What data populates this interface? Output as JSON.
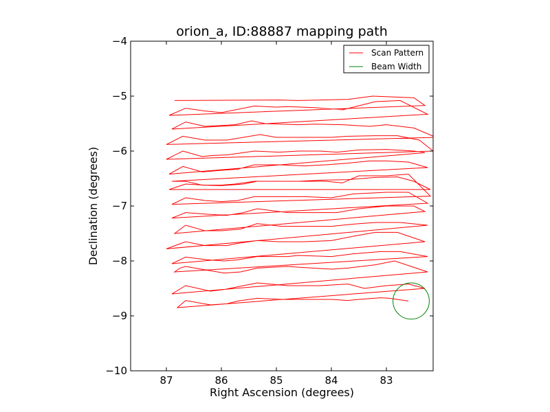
{
  "chart_data": {
    "type": "line",
    "title": "orion_a, ID:88887 mapping path",
    "xlabel": "Right Ascension (degrees)",
    "ylabel": "Declination (degrees)",
    "xlim": [
      87.65,
      82.15
    ],
    "ylim": [
      -10,
      -4
    ],
    "x_ticks": [
      87,
      86,
      85,
      84,
      83
    ],
    "x_tick_labels": [
      "87",
      "86",
      "85",
      "84",
      "83"
    ],
    "y_ticks": [
      -4,
      -5,
      -6,
      -7,
      -8,
      -9,
      -10
    ],
    "y_tick_labels": [
      "−4",
      "−5",
      "−6",
      "−7",
      "−8",
      "−9",
      "−10"
    ],
    "grid": false,
    "legend": {
      "location": "top-right",
      "entries": [
        {
          "label": "Scan Pattern",
          "color": "#ff0000"
        },
        {
          "label": "Beam Width",
          "color": "#008000"
        }
      ]
    },
    "series": [
      {
        "name": "Scan Pattern",
        "color": "#ff0000",
        "x": [
          86.85,
          84.95,
          84.6,
          83.7,
          83.25,
          82.5,
          82.3,
          86.95,
          86.65,
          86.3,
          86.0,
          85.75,
          85.4,
          85.0,
          84.8,
          84.3,
          83.8,
          83.6,
          83.2,
          82.75,
          82.25,
          86.9,
          86.65,
          86.3,
          85.75,
          85.45,
          85.2,
          84.6,
          84.3,
          83.8,
          83.3,
          83.0,
          82.5,
          82.1,
          87.0,
          86.7,
          86.3,
          85.9,
          85.6,
          85.3,
          85.0,
          84.5,
          84.0,
          83.7,
          83.2,
          82.8,
          82.4,
          82.15,
          87.0,
          86.7,
          86.35,
          86.15,
          85.9,
          85.4,
          84.95,
          84.6,
          84.2,
          83.9,
          83.5,
          83.0,
          82.5,
          82.3,
          86.95,
          86.7,
          86.35,
          86.0,
          85.7,
          85.4,
          84.95,
          84.5,
          84.1,
          83.7,
          83.3,
          83.0,
          82.6,
          82.25,
          86.9,
          86.65,
          86.35,
          86.0,
          85.6,
          85.35,
          85.0,
          84.6,
          84.2,
          83.7,
          83.2,
          82.8,
          82.5,
          82.2,
          86.95,
          86.65,
          86.3,
          86.0,
          85.75,
          85.4,
          84.8,
          84.1,
          83.8,
          83.5,
          83.0,
          82.6,
          82.2,
          86.9,
          86.65,
          86.3,
          86.0,
          85.7,
          85.4,
          84.9,
          84.5,
          84.0,
          83.6,
          83.0,
          82.6,
          82.25,
          86.9,
          86.65,
          86.25,
          85.9,
          85.6,
          85.35,
          84.8,
          84.3,
          83.9,
          83.5,
          83.0,
          82.5,
          82.3,
          86.85,
          86.65,
          86.3,
          86.0,
          85.65,
          85.35,
          84.9,
          84.4,
          84.0,
          83.6,
          83.2,
          82.75,
          82.25,
          87.0,
          86.65,
          86.3,
          85.9,
          85.7,
          85.35,
          84.95,
          84.5,
          84.0,
          83.6,
          83.2,
          82.8,
          82.3,
          86.9,
          86.65,
          86.25,
          85.95,
          85.7,
          85.35,
          84.8,
          84.6,
          84.0,
          83.6,
          83.1,
          82.75,
          82.25,
          86.85,
          86.75,
          86.65,
          86.25,
          85.95,
          85.65,
          85.35,
          84.8,
          84.5,
          84.0,
          83.7,
          83.2,
          82.85,
          82.4,
          82.25,
          86.9,
          86.65,
          86.2,
          85.95,
          85.6,
          85.35,
          84.8,
          84.2,
          83.7,
          83.4,
          83.0,
          82.6,
          82.3,
          86.8,
          86.65,
          86.2,
          85.9,
          85.7,
          85.35,
          84.9,
          84.5,
          84.0,
          83.7,
          83.5,
          83.1,
          82.95,
          82.6
        ],
        "y": [
          -5.08,
          -5.07,
          -5.08,
          -5.06,
          -5.0,
          -5.03,
          -5.17,
          -5.35,
          -5.22,
          -5.27,
          -5.3,
          -5.25,
          -5.18,
          -5.2,
          -5.19,
          -5.21,
          -5.25,
          -5.2,
          -5.1,
          -5.08,
          -5.33,
          -5.6,
          -5.47,
          -5.55,
          -5.52,
          -5.45,
          -5.5,
          -5.52,
          -5.51,
          -5.52,
          -5.55,
          -5.52,
          -5.58,
          -5.75,
          -5.88,
          -5.73,
          -5.8,
          -5.8,
          -5.75,
          -5.7,
          -5.75,
          -5.75,
          -5.75,
          -5.73,
          -5.72,
          -5.72,
          -5.8,
          -6.0,
          -6.15,
          -6.0,
          -6.1,
          -6.08,
          -6.07,
          -6.0,
          -6.02,
          -6.0,
          -6.0,
          -6.02,
          -5.98,
          -5.97,
          -6.0,
          -6.03,
          -6.42,
          -6.28,
          -6.38,
          -6.35,
          -6.33,
          -6.25,
          -6.25,
          -6.27,
          -6.25,
          -6.22,
          -6.18,
          -6.18,
          -6.2,
          -6.3,
          -6.55,
          -6.55,
          -6.62,
          -6.63,
          -6.6,
          -6.55,
          -6.55,
          -6.55,
          -6.53,
          -6.52,
          -6.48,
          -6.47,
          -6.55,
          -6.7,
          -6.7,
          -6.6,
          -6.62,
          -6.62,
          -6.6,
          -6.55,
          -6.55,
          -6.55,
          -6.58,
          -6.45,
          -6.45,
          -6.42,
          -6.82,
          -6.97,
          -6.85,
          -6.9,
          -6.92,
          -6.9,
          -6.83,
          -6.83,
          -6.83,
          -6.85,
          -6.78,
          -6.75,
          -6.75,
          -6.95,
          -7.22,
          -7.12,
          -7.15,
          -7.17,
          -7.12,
          -7.05,
          -7.12,
          -7.12,
          -7.12,
          -7.05,
          -7.0,
          -7.0,
          -7.1,
          -7.5,
          -7.35,
          -7.45,
          -7.45,
          -7.42,
          -7.32,
          -7.37,
          -7.37,
          -7.37,
          -7.33,
          -7.3,
          -7.3,
          -7.35,
          -7.78,
          -7.65,
          -7.72,
          -7.72,
          -7.68,
          -7.63,
          -7.65,
          -7.65,
          -7.63,
          -7.55,
          -7.48,
          -7.48,
          -7.65,
          -8.05,
          -7.93,
          -7.98,
          -8.0,
          -7.98,
          -7.92,
          -7.92,
          -7.9,
          -7.92,
          -7.87,
          -7.83,
          -7.83,
          -7.92,
          -8.2,
          -8.13,
          -8.1,
          -8.17,
          -8.22,
          -8.2,
          -8.13,
          -8.1,
          -8.12,
          -8.15,
          -8.13,
          -8.07,
          -8.0,
          -8.15,
          -8.2,
          -8.6,
          -8.45,
          -8.55,
          -8.52,
          -8.45,
          -8.4,
          -8.45,
          -8.45,
          -8.42,
          -8.5,
          -8.45,
          -8.42,
          -8.5,
          -8.85,
          -8.72,
          -8.8,
          -8.78,
          -8.73,
          -8.68,
          -8.7,
          -8.7,
          -8.7,
          -8.72,
          -8.7,
          -8.67,
          -8.68,
          -8.73
        ]
      },
      {
        "name": "Beam Width",
        "color": "#008000",
        "shape": "circle",
        "center": [
          82.55,
          -8.73
        ],
        "radius": 0.33
      }
    ]
  }
}
